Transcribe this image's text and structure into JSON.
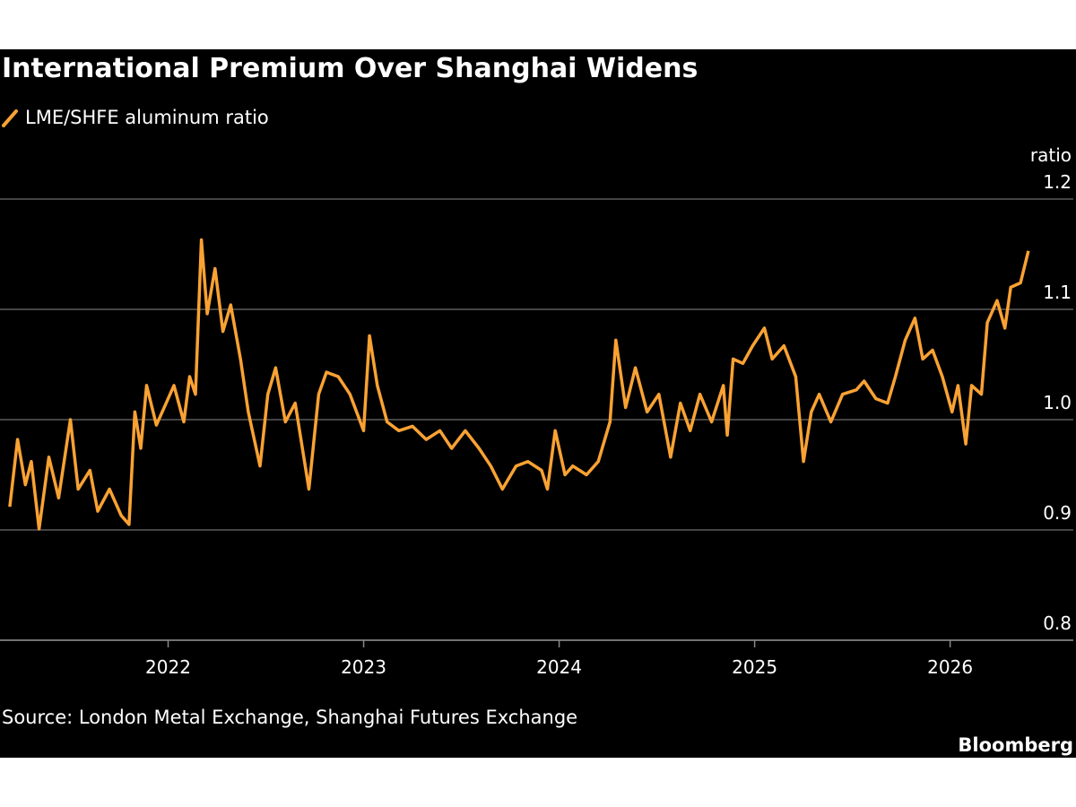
{
  "chart_data": {
    "type": "line",
    "title": "International Premium Over Shanghai Widens",
    "y_unit": "ratio",
    "source": "Source: London Metal Exchange, Shanghai Futures Exchange",
    "brand": "Bloomberg",
    "xlim": [
      2021.14,
      2026.63
    ],
    "xticks": [
      2022,
      2023,
      2024,
      2025,
      2026
    ],
    "ylim": [
      0.8,
      1.2
    ],
    "yticks": [
      0.8,
      0.9,
      {
        "value": 1,
        "label": "1.0"
      },
      1.1,
      1.2
    ],
    "grid": true,
    "x": [
      2021.19,
      2021.23,
      2021.27,
      2021.3,
      2021.34,
      2021.39,
      2021.44,
      2021.5,
      2021.54,
      2021.6,
      2021.64,
      2021.7,
      2021.76,
      2021.8,
      2021.83,
      2021.86,
      2021.89,
      2021.94,
      2021.99,
      2022.03,
      2022.08,
      2022.11,
      2022.14,
      2022.17,
      2022.2,
      2022.24,
      2022.28,
      2022.32,
      2022.37,
      2022.41,
      2022.47,
      2022.51,
      2022.55,
      2022.6,
      2022.65,
      2022.72,
      2022.77,
      2022.81,
      2022.87,
      2022.93,
      2023.0,
      2023.03,
      2023.07,
      2023.12,
      2023.18,
      2023.25,
      2023.32,
      2023.39,
      2023.45,
      2023.52,
      2023.59,
      2023.65,
      2023.71,
      2023.78,
      2023.84,
      2023.91,
      2023.94,
      2023.98,
      2024.03,
      2024.07,
      2024.14,
      2024.2,
      2024.26,
      2024.29,
      2024.34,
      2024.39,
      2024.45,
      2024.51,
      2024.57,
      2024.62,
      2024.67,
      2024.72,
      2024.78,
      2024.84,
      2024.86,
      2024.89,
      2024.94,
      2024.99,
      2025.05,
      2025.09,
      2025.15,
      2025.21,
      2025.25,
      2025.29,
      2025.33,
      2025.39,
      2025.45,
      2025.52,
      2025.56,
      2025.62,
      2025.68,
      2025.72,
      2025.77,
      2025.82,
      2025.86,
      2025.91,
      2025.96,
      2026.01,
      2026.04,
      2026.08,
      2026.11,
      2026.16,
      2026.19,
      2026.24,
      2026.28,
      2026.31,
      2026.36,
      2026.4
    ],
    "series": [
      {
        "name": "LME/SHFE aluminum ratio",
        "color": "#f9a233",
        "values": [
          0.921,
          0.982,
          0.941,
          0.962,
          0.901,
          0.966,
          0.929,
          1.0,
          0.937,
          0.954,
          0.917,
          0.937,
          0.913,
          0.905,
          1.007,
          0.974,
          1.031,
          0.995,
          1.015,
          1.031,
          0.998,
          1.039,
          1.023,
          1.163,
          1.096,
          1.137,
          1.08,
          1.104,
          1.055,
          1.007,
          0.958,
          1.023,
          1.047,
          0.998,
          1.015,
          0.937,
          1.023,
          1.043,
          1.039,
          1.023,
          0.99,
          1.076,
          1.031,
          0.998,
          0.99,
          0.994,
          0.982,
          0.99,
          0.974,
          0.99,
          0.974,
          0.958,
          0.937,
          0.958,
          0.962,
          0.954,
          0.937,
          0.99,
          0.95,
          0.958,
          0.95,
          0.962,
          0.998,
          1.072,
          1.011,
          1.047,
          1.007,
          1.023,
          0.966,
          1.015,
          0.99,
          1.023,
          0.998,
          1.031,
          0.986,
          1.055,
          1.051,
          1.067,
          1.083,
          1.055,
          1.067,
          1.039,
          0.962,
          1.007,
          1.023,
          0.998,
          1.023,
          1.027,
          1.035,
          1.019,
          1.015,
          1.039,
          1.072,
          1.092,
          1.055,
          1.063,
          1.039,
          1.007,
          1.031,
          0.978,
          1.031,
          1.023,
          1.088,
          1.108,
          1.083,
          1.12,
          1.124,
          1.153
        ]
      }
    ]
  }
}
